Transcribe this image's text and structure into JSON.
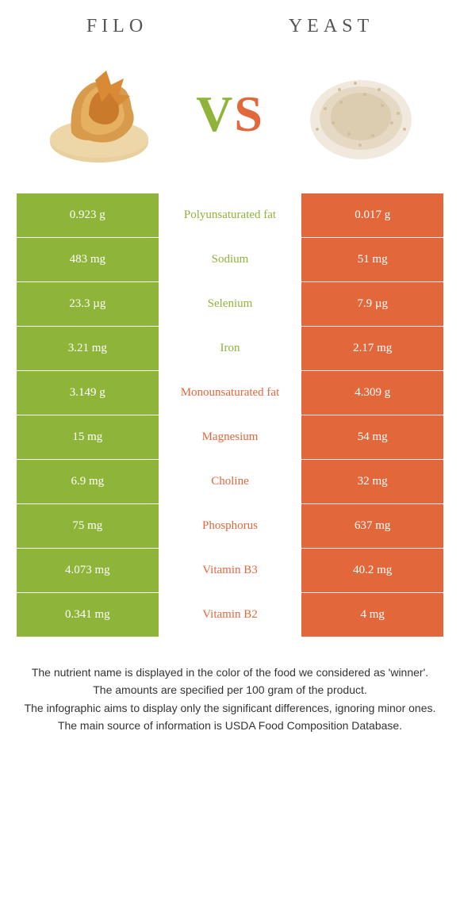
{
  "colors": {
    "left": "#8fb43a",
    "right": "#e2683c",
    "mid_bg": "#ffffff",
    "text_gray": "#555555"
  },
  "header": {
    "left_title": "Filo",
    "right_title": "Yeast",
    "vs_v": "V",
    "vs_s": "S"
  },
  "rows": [
    {
      "left": "0.923 g",
      "label": "Polyunsaturated fat",
      "right": "0.017 g",
      "winner": "left"
    },
    {
      "left": "483 mg",
      "label": "Sodium",
      "right": "51 mg",
      "winner": "left"
    },
    {
      "left": "23.3 µg",
      "label": "Selenium",
      "right": "7.9 µg",
      "winner": "left"
    },
    {
      "left": "3.21 mg",
      "label": "Iron",
      "right": "2.17 mg",
      "winner": "left"
    },
    {
      "left": "3.149 g",
      "label": "Monounsaturated fat",
      "right": "4.309 g",
      "winner": "right"
    },
    {
      "left": "15 mg",
      "label": "Magnesium",
      "right": "54 mg",
      "winner": "right"
    },
    {
      "left": "6.9 mg",
      "label": "Choline",
      "right": "32 mg",
      "winner": "right"
    },
    {
      "left": "75 mg",
      "label": "Phosphorus",
      "right": "637 mg",
      "winner": "right"
    },
    {
      "left": "4.073 mg",
      "label": "Vitamin B3",
      "right": "40.2 mg",
      "winner": "right"
    },
    {
      "left": "0.341 mg",
      "label": "Vitamin B2",
      "right": "4 mg",
      "winner": "right"
    }
  ],
  "footnotes": [
    "The nutrient name is displayed in the color of the food we considered as 'winner'.",
    "The amounts are specified per 100 gram of the product.",
    "The infographic aims to display only the significant differences, ignoring minor ones.",
    "The main source of information is USDA Food Composition Database."
  ]
}
